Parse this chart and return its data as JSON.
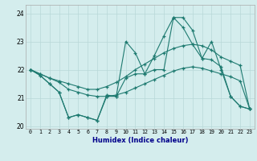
{
  "xlabel": "Humidex (Indice chaleur)",
  "ylabel": "",
  "background_color": "#d4eded",
  "line_color": "#1e7a70",
  "grid_color": "#b8d8d8",
  "hours": [
    0,
    1,
    2,
    3,
    4,
    5,
    6,
    7,
    8,
    9,
    10,
    11,
    12,
    13,
    14,
    15,
    16,
    17,
    18,
    19,
    20,
    21,
    22,
    23
  ],
  "line1_zigzag": [
    22.0,
    21.8,
    21.5,
    21.2,
    20.3,
    20.4,
    20.3,
    20.2,
    21.1,
    21.05,
    23.0,
    22.6,
    21.85,
    22.5,
    23.2,
    23.85,
    23.85,
    23.4,
    22.4,
    23.0,
    22.0,
    21.05,
    20.7,
    20.6
  ],
  "line2_zigzag2": [
    22.0,
    21.8,
    21.5,
    21.2,
    20.3,
    20.4,
    20.3,
    20.2,
    21.05,
    21.05,
    21.7,
    21.85,
    21.85,
    22.0,
    22.0,
    23.85,
    23.5,
    22.9,
    22.4,
    22.35,
    22.1,
    21.05,
    20.7,
    20.6
  ],
  "line3_upper_smooth": [
    22.0,
    21.85,
    21.7,
    21.6,
    21.5,
    21.4,
    21.3,
    21.3,
    21.4,
    21.55,
    21.75,
    22.0,
    22.2,
    22.4,
    22.6,
    22.75,
    22.85,
    22.9,
    22.85,
    22.7,
    22.45,
    22.3,
    22.15,
    20.6
  ],
  "line4_lower_smooth": [
    22.0,
    21.85,
    21.7,
    21.55,
    21.3,
    21.2,
    21.1,
    21.05,
    21.05,
    21.1,
    21.2,
    21.35,
    21.5,
    21.65,
    21.8,
    21.95,
    22.05,
    22.1,
    22.05,
    21.95,
    21.85,
    21.75,
    21.6,
    20.6
  ],
  "ylim": [
    19.9,
    24.3
  ],
  "yticks": [
    20,
    21,
    22,
    23,
    24
  ],
  "xticks": [
    0,
    1,
    2,
    3,
    4,
    5,
    6,
    7,
    8,
    9,
    10,
    11,
    12,
    13,
    14,
    15,
    16,
    17,
    18,
    19,
    20,
    21,
    22,
    23
  ]
}
